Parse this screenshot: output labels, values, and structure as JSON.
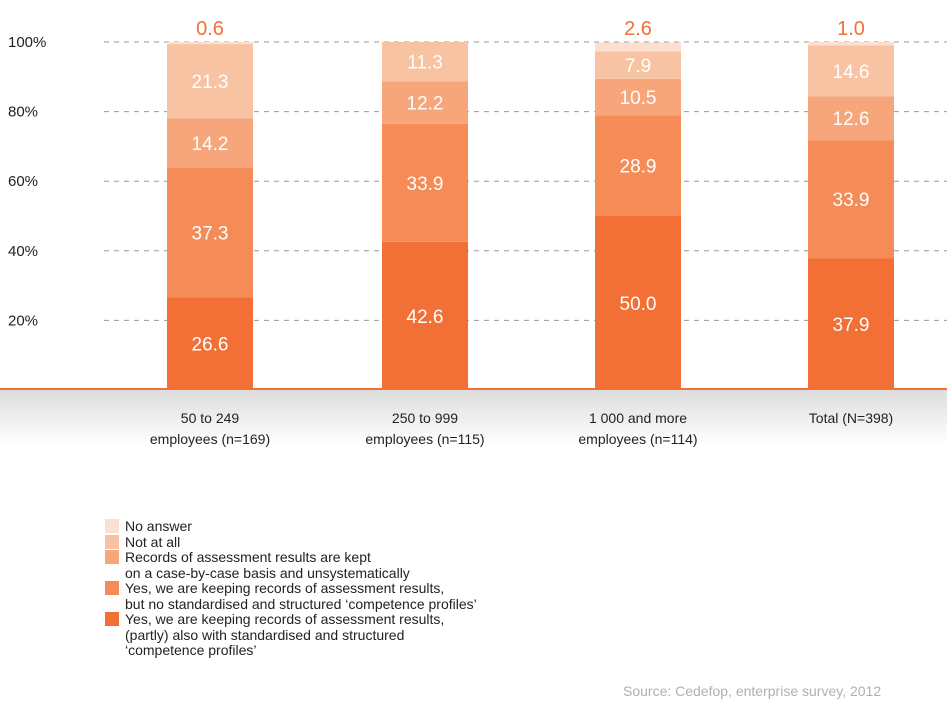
{
  "colors": {
    "no_answer": "#fbe0d2",
    "not_at_all": "#f8c3a3",
    "case_by_case": "#f7a57a",
    "no_profiles": "#f58c58",
    "with_profiles": "#f27035",
    "axis_band": "#e6e6e6",
    "axis_line": "#f27035",
    "top_label": "#f27035",
    "segment_label": "#ffffff"
  },
  "chart_data": {
    "type": "bar",
    "stacked": true,
    "categories": [
      "50 to 249\nemployees (n=169)",
      "250 to 999\nemployees (n=115)",
      "1 000 and more\nemployees (n=114)",
      "Total (N=398)"
    ],
    "series": [
      {
        "key": "with_profiles",
        "values": [
          26.6,
          42.6,
          50.0,
          37.9
        ]
      },
      {
        "key": "no_profiles",
        "values": [
          37.3,
          33.9,
          28.9,
          33.9
        ]
      },
      {
        "key": "case_by_case",
        "values": [
          14.2,
          12.2,
          10.5,
          12.6
        ]
      },
      {
        "key": "not_at_all",
        "values": [
          21.3,
          11.3,
          7.9,
          14.6
        ]
      },
      {
        "key": "no_answer",
        "values": [
          0.6,
          0.0,
          2.6,
          1.0
        ]
      }
    ],
    "segment_labels": [
      [
        "26.6",
        "37.3",
        "14.2",
        "21.3"
      ],
      [
        "42.6",
        "33.9",
        "12.2",
        "11.3"
      ],
      [
        "50.0",
        "28.9",
        "10.5",
        "7.9"
      ],
      [
        "37.9",
        "33.9",
        "12.6",
        "14.6"
      ]
    ],
    "top_labels": [
      "0.6",
      "",
      "2.6",
      "1.0"
    ],
    "yticks": [
      "20%",
      "40%",
      "60%",
      "80%",
      "100%"
    ],
    "ylim": [
      0,
      100
    ],
    "grid": true
  },
  "legend": [
    {
      "key": "no_answer",
      "label": "No answer"
    },
    {
      "key": "not_at_all",
      "label": "Not at all"
    },
    {
      "key": "case_by_case",
      "label": "Records of assessment results are kept\non a case-by-case basis and unsystematically"
    },
    {
      "key": "no_profiles",
      "label": "Yes, we are keeping records of assessment results,\nbut no standardised and structured ‘competence profiles’"
    },
    {
      "key": "with_profiles",
      "label": "Yes, we are keeping records of assessment results,\n(partly) also with standardised and structured\n‘competence profiles’"
    }
  ],
  "source": "Source: Cedefop, enterprise survey, 2012"
}
